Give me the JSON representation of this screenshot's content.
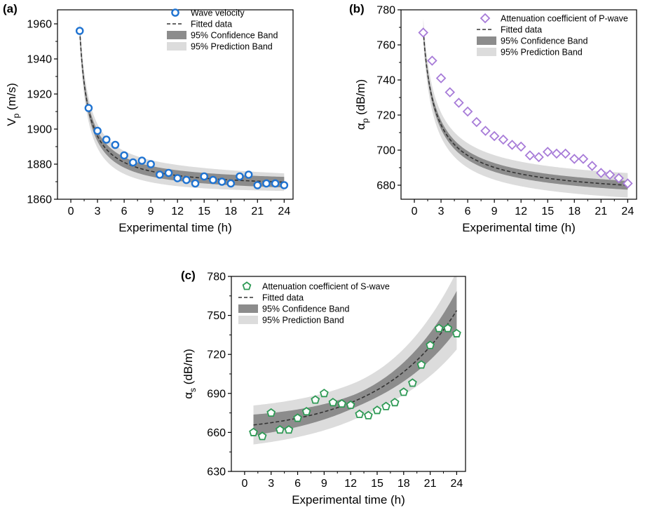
{
  "chart_data": [
    {
      "id": "a",
      "type": "scatter",
      "panel_label": "(a)",
      "xlabel": "Experimental time (h)",
      "ylabel_main": "V",
      "ylabel_sub": "p",
      "ylabel_tail": " (m/s)",
      "xlim": [
        -1.5,
        25
      ],
      "ylim": [
        1860,
        1968
      ],
      "xticks": [
        0,
        3,
        6,
        9,
        12,
        15,
        18,
        21,
        24
      ],
      "yticks": [
        1860,
        1880,
        1900,
        1920,
        1940,
        1960
      ],
      "marker": "circle",
      "marker_color": "#1f73d1",
      "model": {
        "form": "a + b / t^c",
        "a": 1866,
        "b": 90,
        "c": 1.0
      },
      "conf_half_width": [
        3,
        3
      ],
      "pred_half_width": [
        7,
        5
      ],
      "x": [
        1,
        2,
        3,
        4,
        5,
        6,
        7,
        8,
        9,
        10,
        11,
        12,
        13,
        14,
        15,
        16,
        17,
        18,
        19,
        20,
        21,
        22,
        23,
        24
      ],
      "y": [
        1956,
        1912,
        1899,
        1894,
        1891,
        1885,
        1881,
        1882,
        1880,
        1874,
        1875,
        1872,
        1871,
        1869,
        1873,
        1871,
        1870,
        1869,
        1873,
        1874,
        1868,
        1869,
        1869,
        1868
      ],
      "legend": {
        "points": "Wave velocity",
        "fit": "Fitted data",
        "conf": "95% Confidence Band",
        "pred": "95% Prediction Band"
      }
    },
    {
      "id": "b",
      "type": "scatter",
      "panel_label": "(b)",
      "xlabel": "Experimental time (h)",
      "ylabel_main": "α",
      "ylabel_sub": "p",
      "ylabel_tail": " (dB/m)",
      "xlim": [
        -1.5,
        25
      ],
      "ylim": [
        672,
        780
      ],
      "xticks": [
        0,
        3,
        6,
        9,
        12,
        15,
        18,
        21,
        24
      ],
      "yticks": [
        680,
        700,
        720,
        740,
        760,
        780
      ],
      "marker": "diamond",
      "marker_color": "#a77bd8",
      "model": {
        "form": "a + b / t^c",
        "a": 670,
        "b": 98,
        "c": 0.72
      },
      "conf_half_width": [
        2.5,
        2.5
      ],
      "pred_half_width": [
        7,
        7
      ],
      "x": [
        1,
        2,
        3,
        4,
        5,
        6,
        7,
        8,
        9,
        10,
        11,
        12,
        13,
        14,
        15,
        16,
        17,
        18,
        19,
        20,
        21,
        22,
        23,
        24
      ],
      "y": [
        767,
        751,
        741,
        733,
        727,
        722,
        716,
        711,
        708,
        706,
        703,
        702,
        697,
        696,
        699,
        698,
        698,
        695,
        695,
        691,
        687,
        686,
        684,
        681
      ],
      "legend": {
        "points": "Attenuation coefficient of P-wave",
        "fit": "Fitted data",
        "conf": "95% Confidence Band",
        "pred": "95% Prediction Band"
      }
    },
    {
      "id": "c",
      "type": "scatter",
      "panel_label": "(c)",
      "xlabel": "Experimental time (h)",
      "ylabel_main": "α",
      "ylabel_sub": "s",
      "ylabel_tail": " (dB/m)",
      "xlim": [
        -1.5,
        25
      ],
      "ylim": [
        630,
        780
      ],
      "xticks": [
        0,
        3,
        6,
        9,
        12,
        15,
        18,
        21,
        24
      ],
      "yticks": [
        630,
        660,
        690,
        720,
        750,
        780
      ],
      "marker": "pentagon",
      "marker_color": "#2e9a55",
      "model": {
        "form": "a + b * exp(k t)",
        "a": 659,
        "b": 6,
        "k": 0.115
      },
      "conf_half_width": [
        8,
        5,
        15
      ],
      "pred_half_width": [
        15,
        14,
        30
      ],
      "x": [
        1,
        2,
        3,
        4,
        5,
        6,
        7,
        8,
        9,
        10,
        11,
        12,
        13,
        14,
        15,
        16,
        17,
        18,
        19,
        20,
        21,
        22,
        23,
        24
      ],
      "y": [
        660,
        657,
        675,
        662,
        662,
        671,
        676,
        685,
        690,
        683,
        682,
        681,
        674,
        673,
        677,
        680,
        683,
        691,
        698,
        712,
        727,
        740,
        740,
        736
      ],
      "legend": {
        "points": "Attenuation coefficient of S-wave",
        "fit": "Fitted data",
        "conf": "95% Confidence Band",
        "pred": "95% Prediction Band"
      }
    }
  ]
}
